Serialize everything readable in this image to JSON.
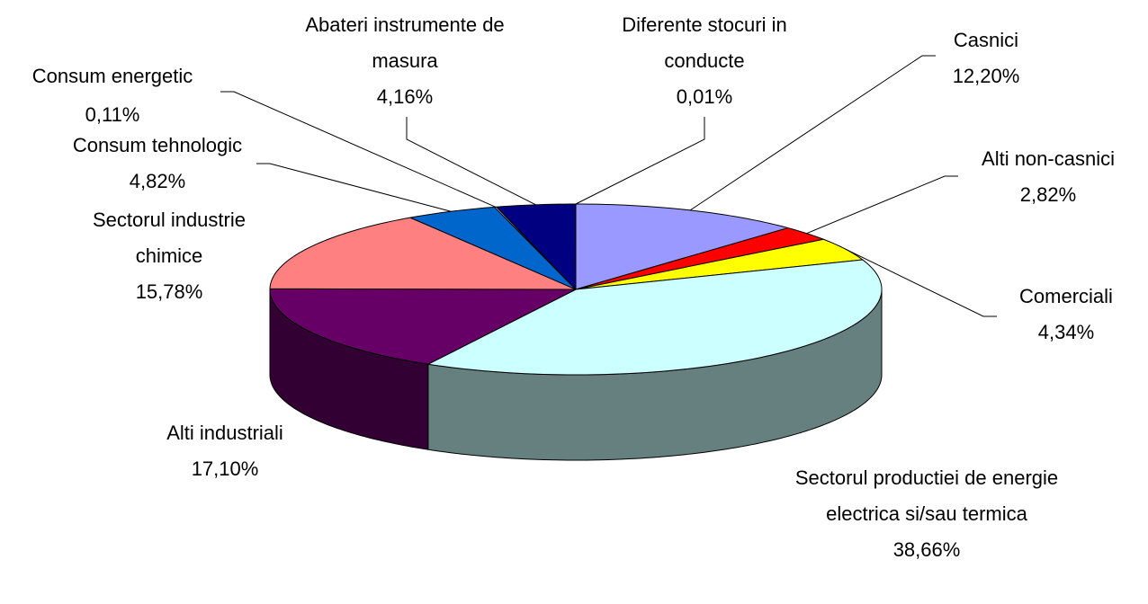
{
  "chart_data": {
    "type": "pie",
    "categories": [
      "Casnici",
      "Alti non-casnici",
      "Comerciali",
      "Sectorul productiei de energie electrica si/sau termica",
      "Alti industriali",
      "Sectorul industrie chimice",
      "Consum tehnologic",
      "Consum energetic",
      "Abateri instrumente de masura",
      "Diferente stocuri in conducte"
    ],
    "values": [
      12.2,
      2.82,
      4.34,
      38.66,
      17.1,
      15.78,
      4.82,
      0.11,
      4.16,
      0.01
    ],
    "value_labels": [
      "12,20%",
      "2,82%",
      "4,34%",
      "38,66%",
      "17,10%",
      "15,78%",
      "4,82%",
      "0,11%",
      "4,16%",
      "0,01%"
    ],
    "colors": [
      "#9999ff",
      "#ff0000",
      "#ffff00",
      "#ccffff",
      "#660066",
      "#ff8080",
      "#0066cc",
      "#ccccff",
      "#000080",
      "#66ccff"
    ]
  }
}
